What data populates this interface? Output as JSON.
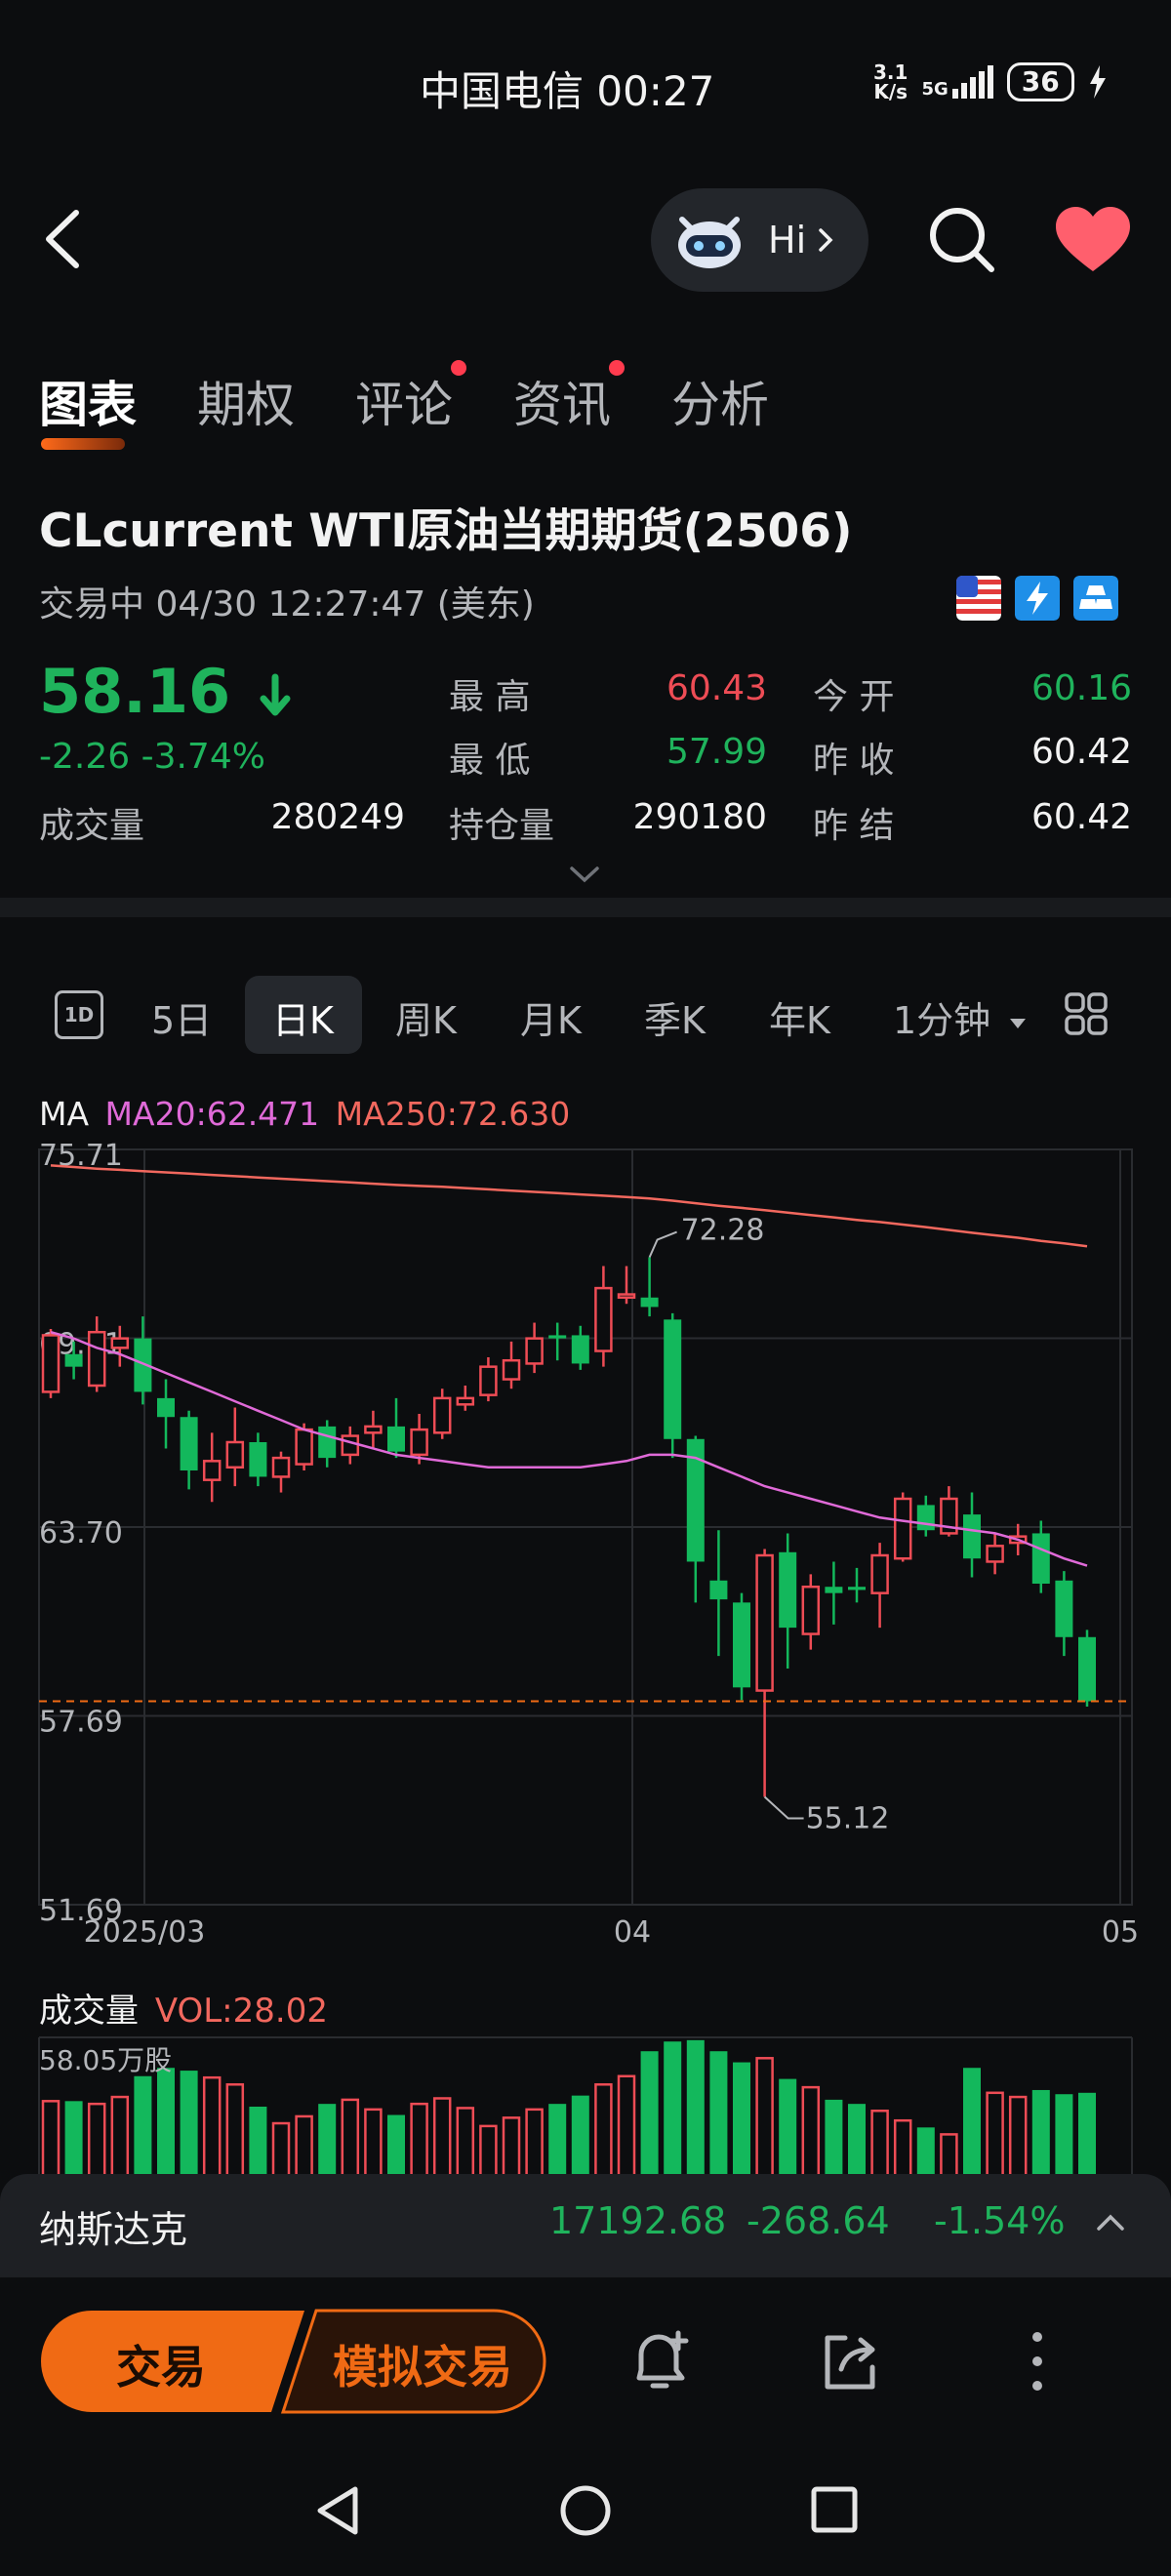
{
  "status_bar": {
    "carrier_time": "中国电信 00:27",
    "net_speed_value": "3.1",
    "net_speed_unit": "K/s",
    "network": "5G",
    "battery": "36"
  },
  "header": {
    "assistant_label": "Hi",
    "tabs": [
      {
        "label": "图表",
        "active": true,
        "dot": false
      },
      {
        "label": "期权",
        "active": false,
        "dot": false
      },
      {
        "label": "评论",
        "active": false,
        "dot": true
      },
      {
        "label": "资讯",
        "active": false,
        "dot": true
      },
      {
        "label": "分析",
        "active": false,
        "dot": false
      }
    ]
  },
  "symbol": {
    "title": "CLcurrent  WTI原油当期期货(2506)",
    "status": "交易中   04/30 12:27:47 (美东)",
    "price": "58.16",
    "change": "-2.26  -3.74%",
    "volume_label": "成交量",
    "volume_value": "280249",
    "high_label": "最  高",
    "high_value": "60.43",
    "low_label": "最  低",
    "low_value": "57.99",
    "oi_label": "持仓量",
    "oi_value": "290180",
    "open_label": "今  开",
    "open_value": "60.16",
    "prev_close_label": "昨  收",
    "prev_close_value": "60.42",
    "prev_settle_label": "昨  结",
    "prev_settle_value": "60.42"
  },
  "kline_bar": {
    "icon_label": "1D",
    "items": [
      "5日",
      "日K",
      "周K",
      "月K",
      "季K",
      "年K",
      "1分钟"
    ],
    "active": "日K"
  },
  "ma": {
    "label": "MA",
    "ma20": "MA20:62.471",
    "ma250": "MA250:72.630"
  },
  "chart_data": {
    "type": "candlestick",
    "y_ticks": [
      "75.71",
      "69.71",
      "63.70",
      "57.69",
      "51.69"
    ],
    "ylim": [
      51.69,
      75.71
    ],
    "x_ticks": [
      "2025/03",
      "04",
      "05"
    ],
    "annotations": {
      "high": "72.28",
      "low": "55.12"
    },
    "current_price_line": 58.16,
    "candles": [
      {
        "o": 68.0,
        "c": 69.8,
        "h": 70.0,
        "l": 67.8
      },
      {
        "o": 69.2,
        "c": 68.8,
        "h": 69.6,
        "l": 68.4
      },
      {
        "o": 68.2,
        "c": 69.9,
        "h": 70.4,
        "l": 68.0
      },
      {
        "o": 69.4,
        "c": 69.7,
        "h": 70.1,
        "l": 68.8
      },
      {
        "o": 69.7,
        "c": 68.0,
        "h": 70.4,
        "l": 67.6
      },
      {
        "o": 67.8,
        "c": 67.2,
        "h": 68.4,
        "l": 66.2
      },
      {
        "o": 67.2,
        "c": 65.5,
        "h": 67.4,
        "l": 64.9
      },
      {
        "o": 65.2,
        "c": 65.8,
        "h": 66.7,
        "l": 64.5
      },
      {
        "o": 65.6,
        "c": 66.4,
        "h": 67.5,
        "l": 65.0
      },
      {
        "o": 66.4,
        "c": 65.3,
        "h": 66.7,
        "l": 65.0
      },
      {
        "o": 65.3,
        "c": 65.9,
        "h": 66.1,
        "l": 64.8
      },
      {
        "o": 65.7,
        "c": 66.8,
        "h": 67.0,
        "l": 65.5
      },
      {
        "o": 66.9,
        "c": 65.9,
        "h": 67.1,
        "l": 65.6
      },
      {
        "o": 66.0,
        "c": 66.6,
        "h": 66.9,
        "l": 65.7
      },
      {
        "o": 66.7,
        "c": 66.9,
        "h": 67.4,
        "l": 66.2
      },
      {
        "o": 66.9,
        "c": 66.1,
        "h": 67.8,
        "l": 65.9
      },
      {
        "o": 66.0,
        "c": 66.8,
        "h": 67.3,
        "l": 65.7
      },
      {
        "o": 66.7,
        "c": 67.8,
        "h": 68.1,
        "l": 66.5
      },
      {
        "o": 67.6,
        "c": 67.8,
        "h": 68.2,
        "l": 67.4
      },
      {
        "o": 67.9,
        "c": 68.8,
        "h": 69.1,
        "l": 67.7
      },
      {
        "o": 68.4,
        "c": 69.0,
        "h": 69.6,
        "l": 68.1
      },
      {
        "o": 68.9,
        "c": 69.7,
        "h": 70.2,
        "l": 68.6
      },
      {
        "o": 69.8,
        "c": 69.7,
        "h": 70.2,
        "l": 69.0
      },
      {
        "o": 69.8,
        "c": 68.9,
        "h": 70.1,
        "l": 68.7
      },
      {
        "o": 69.3,
        "c": 71.3,
        "h": 72.0,
        "l": 68.8
      },
      {
        "o": 71.0,
        "c": 71.1,
        "h": 72.0,
        "l": 70.8
      },
      {
        "o": 71.0,
        "c": 70.7,
        "h": 72.28,
        "l": 70.4
      },
      {
        "o": 70.3,
        "c": 66.5,
        "h": 70.5,
        "l": 65.9
      },
      {
        "o": 66.5,
        "c": 62.6,
        "h": 66.6,
        "l": 61.3
      },
      {
        "o": 62.0,
        "c": 61.4,
        "h": 63.6,
        "l": 59.6
      },
      {
        "o": 61.3,
        "c": 58.6,
        "h": 61.6,
        "l": 58.2
      },
      {
        "o": 58.5,
        "c": 62.8,
        "h": 63.0,
        "l": 55.12
      },
      {
        "o": 62.9,
        "c": 60.5,
        "h": 63.5,
        "l": 59.2
      },
      {
        "o": 60.3,
        "c": 61.8,
        "h": 62.2,
        "l": 59.8
      },
      {
        "o": 61.8,
        "c": 61.6,
        "h": 62.6,
        "l": 60.6
      },
      {
        "o": 61.8,
        "c": 61.7,
        "h": 62.4,
        "l": 61.3
      },
      {
        "o": 61.6,
        "c": 62.8,
        "h": 63.2,
        "l": 60.5
      },
      {
        "o": 62.7,
        "c": 64.6,
        "h": 64.8,
        "l": 62.6
      },
      {
        "o": 64.4,
        "c": 63.6,
        "h": 64.7,
        "l": 63.4
      },
      {
        "o": 63.5,
        "c": 64.6,
        "h": 65.0,
        "l": 63.4
      },
      {
        "o": 64.1,
        "c": 62.7,
        "h": 64.8,
        "l": 62.1
      },
      {
        "o": 62.6,
        "c": 63.1,
        "h": 63.5,
        "l": 62.2
      },
      {
        "o": 63.2,
        "c": 63.4,
        "h": 63.8,
        "l": 62.8
      },
      {
        "o": 63.5,
        "c": 61.9,
        "h": 63.9,
        "l": 61.6
      },
      {
        "o": 62.0,
        "c": 60.2,
        "h": 62.3,
        "l": 59.6
      },
      {
        "o": 60.2,
        "c": 58.16,
        "h": 60.43,
        "l": 57.99
      }
    ],
    "ma20": [
      69.9,
      69.7,
      69.4,
      69.2,
      68.9,
      68.6,
      68.3,
      68.0,
      67.7,
      67.4,
      67.1,
      66.8,
      66.6,
      66.4,
      66.2,
      66.0,
      65.9,
      65.8,
      65.7,
      65.6,
      65.6,
      65.6,
      65.6,
      65.6,
      65.7,
      65.8,
      66.0,
      66.0,
      65.9,
      65.6,
      65.3,
      65.0,
      64.8,
      64.6,
      64.4,
      64.2,
      64.0,
      63.9,
      63.8,
      63.7,
      63.6,
      63.5,
      63.3,
      63.0,
      62.7,
      62.471
    ],
    "ma250": [
      75.2,
      75.15,
      75.1,
      75.06,
      75.02,
      74.98,
      74.94,
      74.9,
      74.86,
      74.82,
      74.78,
      74.74,
      74.7,
      74.66,
      74.62,
      74.58,
      74.55,
      74.52,
      74.48,
      74.44,
      74.4,
      74.36,
      74.32,
      74.28,
      74.24,
      74.2,
      74.15,
      74.08,
      74.0,
      73.92,
      73.85,
      73.78,
      73.7,
      73.62,
      73.55,
      73.47,
      73.4,
      73.32,
      73.24,
      73.15,
      73.06,
      72.98,
      72.9,
      72.8,
      72.72,
      72.63
    ]
  },
  "volume": {
    "label": "成交量",
    "vol": "VOL:28.02",
    "scale": "58.05万股",
    "values": [
      0.54,
      0.54,
      0.52,
      0.57,
      0.72,
      0.78,
      0.76,
      0.71,
      0.66,
      0.5,
      0.38,
      0.43,
      0.52,
      0.55,
      0.48,
      0.44,
      0.52,
      0.56,
      0.49,
      0.36,
      0.42,
      0.48,
      0.52,
      0.58,
      0.66,
      0.72,
      0.9,
      0.97,
      0.98,
      0.9,
      0.82,
      0.85,
      0.7,
      0.64,
      0.55,
      0.52,
      0.47,
      0.4,
      0.35,
      0.3,
      0.78,
      0.6,
      0.57,
      0.62,
      0.59,
      0.6
    ]
  },
  "ticker_bar": {
    "name": "纳斯达克",
    "value": "17192.68",
    "change": "-268.64",
    "percent": "-1.54%"
  },
  "bottom_bar": {
    "trade": "交易",
    "sim_trade": "模拟交易"
  }
}
